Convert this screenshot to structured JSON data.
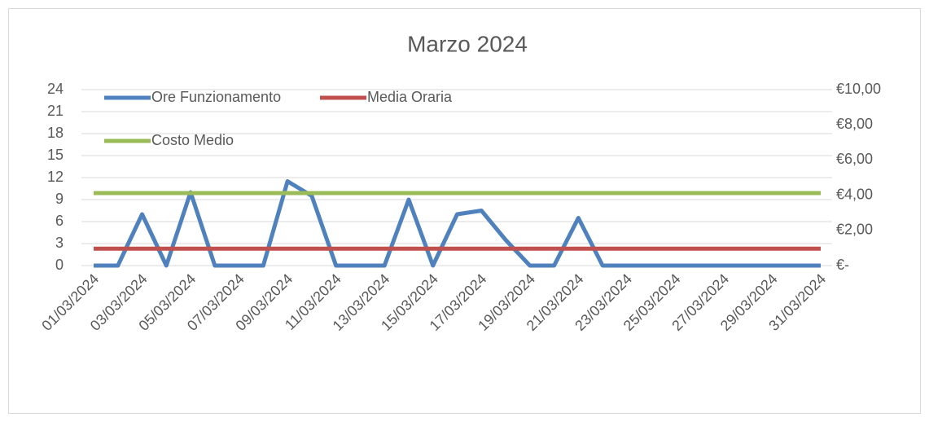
{
  "chart_data": {
    "type": "line",
    "title": "Marzo 2024",
    "categories": [
      "01/03/2024",
      null,
      "03/03/2024",
      null,
      "05/03/2024",
      null,
      "07/03/2024",
      null,
      "09/03/2024",
      null,
      "11/03/2024",
      null,
      "13/03/2024",
      null,
      "15/03/2024",
      null,
      "17/03/2024",
      null,
      "19/03/2024",
      null,
      "21/03/2024",
      null,
      "23/03/2024",
      null,
      "25/03/2024",
      null,
      "27/03/2024",
      null,
      "29/03/2024",
      null,
      "31/03/2024"
    ],
    "series": [
      {
        "name": "Ore Funzionamento",
        "color": "#4f81bd",
        "values": [
          0,
          0,
          7,
          0,
          10,
          0,
          0,
          0,
          11.5,
          9.5,
          0,
          0,
          0,
          9,
          0,
          7,
          7.5,
          3.5,
          0,
          0,
          6.5,
          0,
          0,
          0,
          0,
          0,
          0,
          0,
          0,
          0,
          0
        ]
      },
      {
        "name": "Media Oraria",
        "color": "#c0504d",
        "values": [
          2.31,
          2.31,
          2.31,
          2.31,
          2.31,
          2.31,
          2.31,
          2.31,
          2.31,
          2.31,
          2.31,
          2.31,
          2.31,
          2.31,
          2.31,
          2.31,
          2.31,
          2.31,
          2.31,
          2.31,
          2.31,
          2.31,
          2.31,
          2.31,
          2.31,
          2.31,
          2.31,
          2.31,
          2.31,
          2.31,
          2.31
        ]
      },
      {
        "name": "Costo Medio",
        "color": "#9bbb59",
        "axis": "y2",
        "values": [
          4.12,
          4.12,
          4.12,
          4.12,
          4.12,
          4.12,
          4.12,
          4.12,
          4.12,
          4.12,
          4.12,
          4.12,
          4.12,
          4.12,
          4.12,
          4.12,
          4.12,
          4.12,
          4.12,
          4.12,
          4.12,
          4.12,
          4.12,
          4.12,
          4.12,
          4.12,
          4.12,
          4.12,
          4.12,
          4.12,
          4.12
        ]
      }
    ],
    "ylim": [
      0,
      24
    ],
    "yticks": [
      0,
      3,
      6,
      9,
      12,
      15,
      18,
      21,
      24
    ],
    "y2lim": [
      0,
      10
    ],
    "y2ticks": [
      {
        "value": 0,
        "label": "€-"
      },
      {
        "value": 2,
        "label": "€2,00"
      },
      {
        "value": 4,
        "label": "€4,00"
      },
      {
        "value": 6,
        "label": "€6,00"
      },
      {
        "value": 8,
        "label": "€8,00"
      },
      {
        "value": 10,
        "label": "€10,00"
      }
    ],
    "grid": true,
    "legend": "top-left"
  }
}
